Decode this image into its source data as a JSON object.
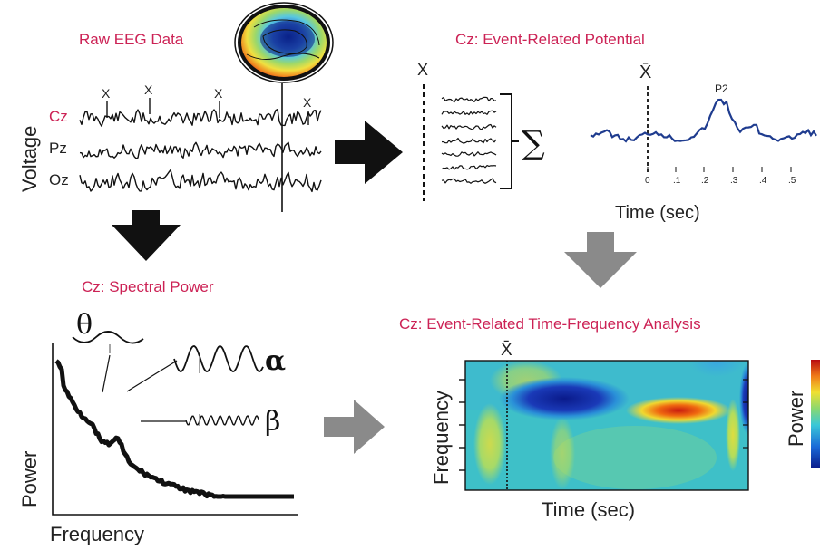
{
  "raw": {
    "title": "Raw EEG Data",
    "ylabel": "Voltage",
    "channels": [
      "Cz",
      "Pz",
      "Oz"
    ],
    "event_marker": "X",
    "channel_colors": {
      "Cz": "#cc2255",
      "Pz": "#222222",
      "Oz": "#222222"
    }
  },
  "erp": {
    "title": "Cz: Event-Related Potential",
    "event_marker": "X",
    "event_symbol": "X̄",
    "sum_symbol": "∑",
    "peak_label": "P2",
    "xlabel": "Time (sec)",
    "tick_labels": [
      "0",
      ".1",
      ".2",
      ".3",
      ".4",
      ".5"
    ],
    "line_color": "#1f3c8f"
  },
  "spectral": {
    "title": "Cz: Spectral Power",
    "ylabel": "Power",
    "xlabel": "Frequency",
    "theta_symbol": "θ",
    "alpha_symbol": "α",
    "beta_symbol": "β"
  },
  "tf": {
    "title": "Cz: Event-Related Time-Frequency Analysis",
    "event_symbol": "X̄",
    "ylabel": "Frequency",
    "xlabel": "Time (sec)",
    "colorbar_label": "Power"
  },
  "colors": {
    "title": "#cc2255",
    "arrow_dark": "#111111",
    "arrow_gray": "#8a8a8a"
  }
}
